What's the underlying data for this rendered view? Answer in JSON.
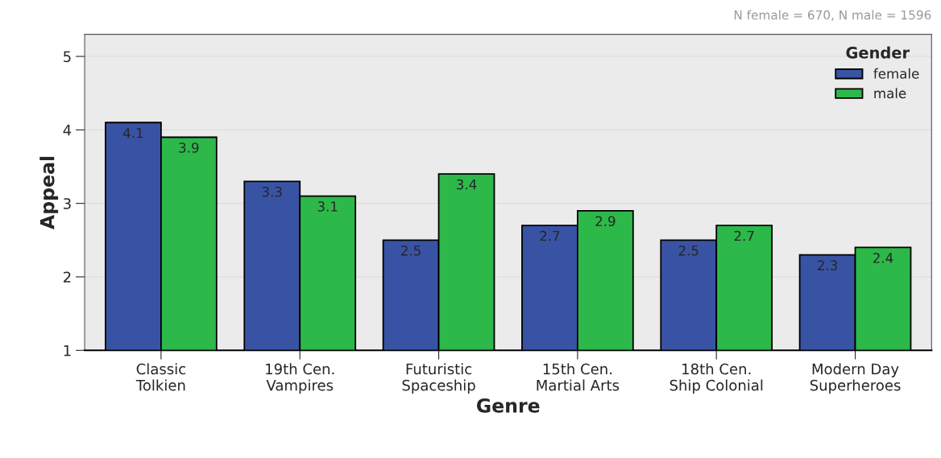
{
  "chart_data": {
    "type": "bar",
    "xlabel": "Genre",
    "ylabel": "Appeal",
    "legend_title": "Gender",
    "categories": [
      "Classic\nTolkien",
      "19th Cen.\nVampires",
      "Futuristic\nSpaceship",
      "15th Cen.\nMartial Arts",
      "18th Cen.\nShip Colonial",
      "Modern Day\nSuperheroes"
    ],
    "series": [
      {
        "name": "female",
        "color": "#3953a4",
        "values": [
          4.1,
          3.3,
          2.5,
          2.7,
          2.5,
          2.3
        ]
      },
      {
        "name": "male",
        "color": "#2db84a",
        "values": [
          3.9,
          3.1,
          3.4,
          2.9,
          2.7,
          2.4
        ]
      }
    ],
    "ylim": [
      1,
      5.3
    ],
    "yticks": [
      1,
      2,
      3,
      4,
      5
    ],
    "grid": "y",
    "legend": "top right",
    "data_labels": true,
    "annotations": [
      "N female = 670, N male = 1596"
    ]
  }
}
